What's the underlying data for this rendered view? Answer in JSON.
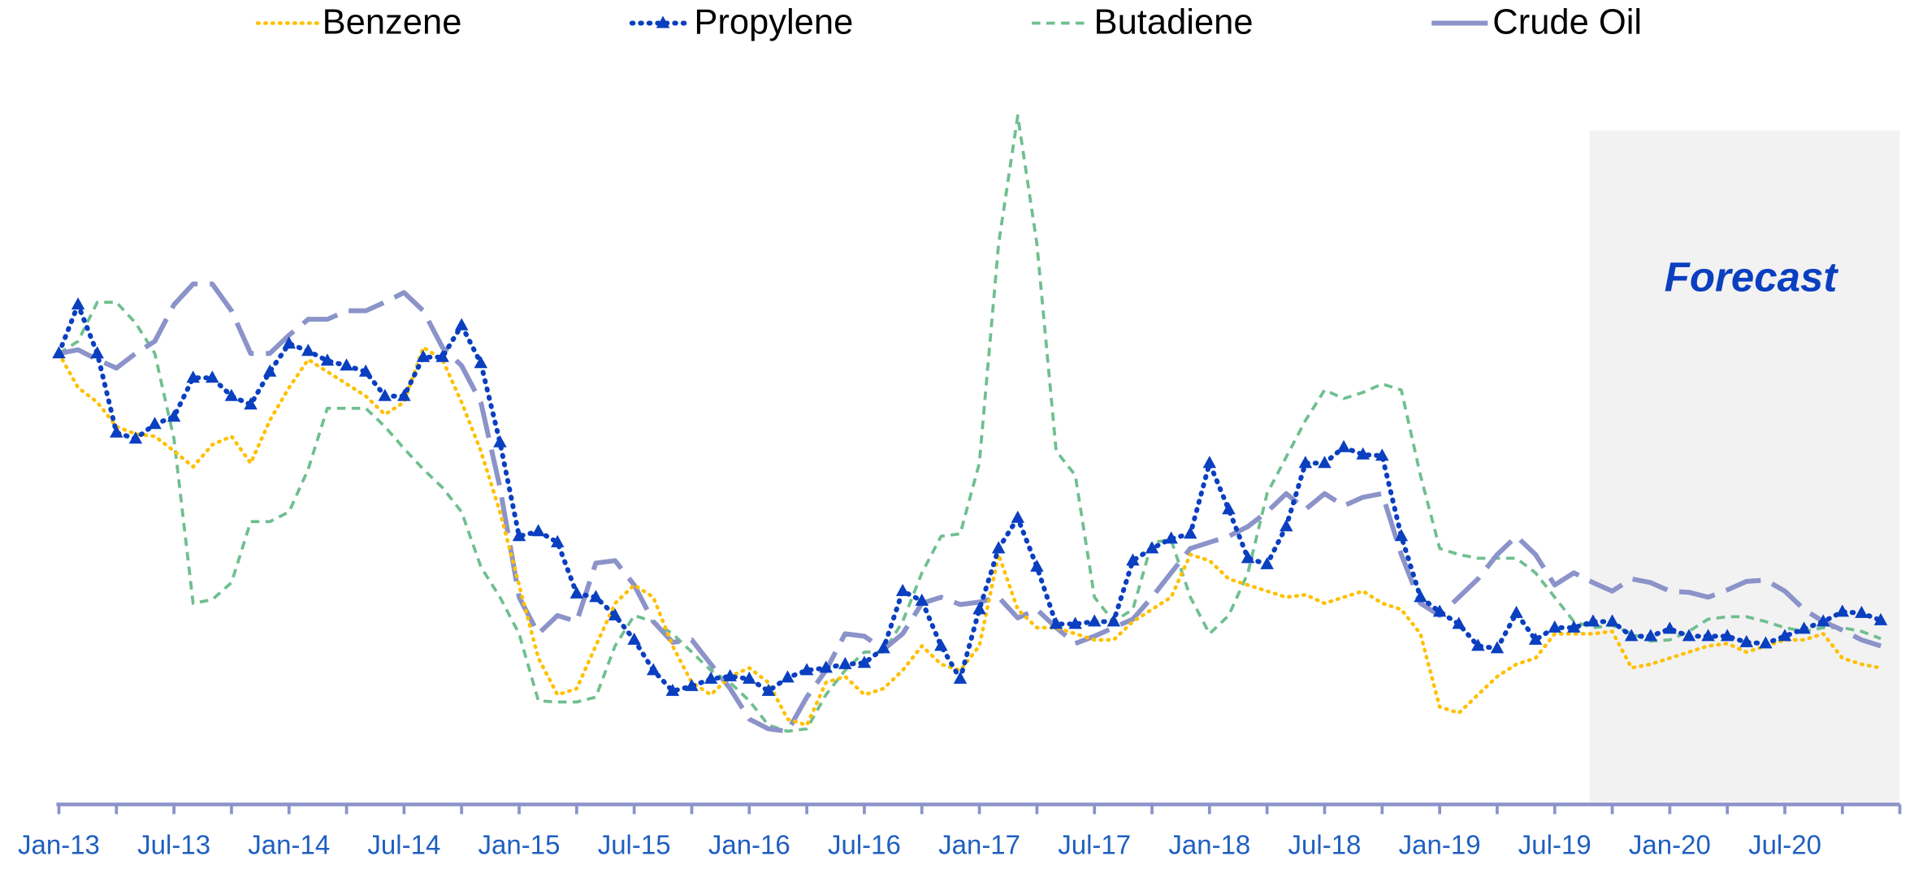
{
  "chart_data": {
    "type": "line",
    "categories": [
      "Jan-13",
      null,
      null,
      null,
      null,
      null,
      "Jul-13",
      null,
      null,
      null,
      null,
      null,
      "Jan-14",
      null,
      null,
      null,
      null,
      null,
      "Jul-14",
      null,
      null,
      null,
      null,
      null,
      "Jan-15",
      null,
      null,
      null,
      null,
      null,
      "Jul-15",
      null,
      null,
      null,
      null,
      null,
      "Jan-16",
      null,
      null,
      null,
      null,
      null,
      "Jul-16",
      null,
      null,
      null,
      null,
      null,
      "Jan-17",
      null,
      null,
      null,
      null,
      null,
      "Jul-17",
      null,
      null,
      null,
      null,
      null,
      "Jan-18",
      null,
      null,
      null,
      null,
      null,
      "Jul-18",
      null,
      null,
      null,
      null,
      null,
      "Jan-19",
      null,
      null,
      null,
      null,
      null,
      "Jul-19",
      null,
      null,
      null,
      null,
      null,
      "Jan-20",
      null,
      null,
      null,
      null,
      null,
      "Jul-20",
      null,
      null,
      null,
      null,
      null
    ],
    "ylim": [
      0,
      580
    ],
    "series": [
      {
        "name": "Benzene",
        "color": "#ffc000",
        "style": "dotted",
        "values": [
          370,
          342,
          330,
          310,
          304,
          302,
          290,
          277,
          295,
          302,
          280,
          315,
          342,
          365,
          355,
          345,
          335,
          320,
          330,
          375,
          365,
          330,
          290,
          240,
          180,
          120,
          90,
          95,
          130,
          165,
          180,
          170,
          130,
          100,
          90,
          105,
          112,
          100,
          70,
          65,
          100,
          105,
          90,
          95,
          110,
          130,
          115,
          110,
          130,
          205,
          160,
          145,
          145,
          140,
          135,
          135,
          150,
          160,
          170,
          205,
          200,
          185,
          180,
          175,
          170,
          172,
          165,
          170,
          175,
          165,
          160,
          140,
          80,
          75,
          90,
          105,
          115,
          120,
          140,
          140,
          140,
          142,
          112,
          115,
          120,
          125,
          130,
          132,
          125,
          130,
          135,
          135,
          140,
          120,
          115,
          112
        ]
      },
      {
        "name": "Propylene",
        "color": "#0a3fc0",
        "style": "dotted-triangle",
        "values": [
          370,
          410,
          370,
          305,
          300,
          312,
          318,
          350,
          350,
          335,
          328,
          355,
          378,
          372,
          364,
          360,
          355,
          335,
          335,
          367,
          367,
          393,
          362,
          297,
          220,
          224,
          215,
          173,
          170,
          155,
          135,
          110,
          93,
          97,
          103,
          105,
          103,
          93,
          104,
          110,
          112,
          115,
          116,
          128,
          175,
          167,
          130,
          103,
          160,
          210,
          235,
          195,
          148,
          148,
          150,
          150,
          200,
          210,
          218,
          222,
          280,
          242,
          202,
          197,
          228,
          280,
          280,
          293,
          287,
          286,
          220,
          170,
          158,
          148,
          130,
          128,
          157,
          135,
          145,
          145,
          150,
          150,
          138,
          138,
          144,
          138,
          138,
          138,
          133,
          132,
          138,
          144,
          150,
          158,
          157,
          151
        ]
      },
      {
        "name": "Butadiene",
        "color": "#6fbf8f",
        "style": "dashed",
        "values": [
          370,
          380,
          412,
          412,
          395,
          370,
          300,
          165,
          168,
          182,
          232,
          232,
          240,
          275,
          325,
          325,
          325,
          310,
          292,
          275,
          260,
          240,
          195,
          170,
          140,
          85,
          84,
          84,
          88,
          130,
          155,
          150,
          140,
          125,
          110,
          100,
          85,
          65,
          60,
          62,
          90,
          110,
          125,
          125,
          150,
          190,
          220,
          222,
          280,
          460,
          565,
          460,
          290,
          270,
          170,
          150,
          160,
          215,
          217,
          170,
          140,
          155,
          190,
          255,
          285,
          315,
          340,
          333,
          338,
          345,
          340,
          270,
          210,
          205,
          202,
          202,
          202,
          190,
          170,
          150,
          145,
          147,
          140,
          134,
          135,
          142,
          152,
          154,
          154,
          150,
          145,
          142,
          145,
          145,
          142,
          136
        ]
      },
      {
        "name": "Crude Oil",
        "color": "#8b93c9",
        "style": "long-dash",
        "values": [
          370,
          373,
          365,
          358,
          370,
          380,
          410,
          427,
          427,
          405,
          370,
          370,
          385,
          398,
          398,
          405,
          405,
          412,
          420,
          405,
          375,
          360,
          330,
          260,
          170,
          140,
          155,
          150,
          198,
          200,
          180,
          150,
          133,
          135,
          115,
          95,
          70,
          62,
          60,
          88,
          110,
          140,
          138,
          127,
          140,
          165,
          170,
          164,
          166,
          170,
          153,
          160,
          145,
          132,
          138,
          145,
          152,
          170,
          190,
          210,
          215,
          220,
          228,
          240,
          255,
          242,
          255,
          245,
          252,
          255,
          205,
          165,
          155,
          170,
          185,
          205,
          220,
          205,
          180,
          190,
          182,
          175,
          185,
          182,
          175,
          174,
          170,
          176,
          183,
          184,
          175,
          160,
          150,
          143,
          135,
          130
        ]
      }
    ],
    "annotations": [
      {
        "text": "Forecast",
        "from_category": 80,
        "shade": "#f2f2f2"
      }
    ],
    "legend": "top"
  }
}
